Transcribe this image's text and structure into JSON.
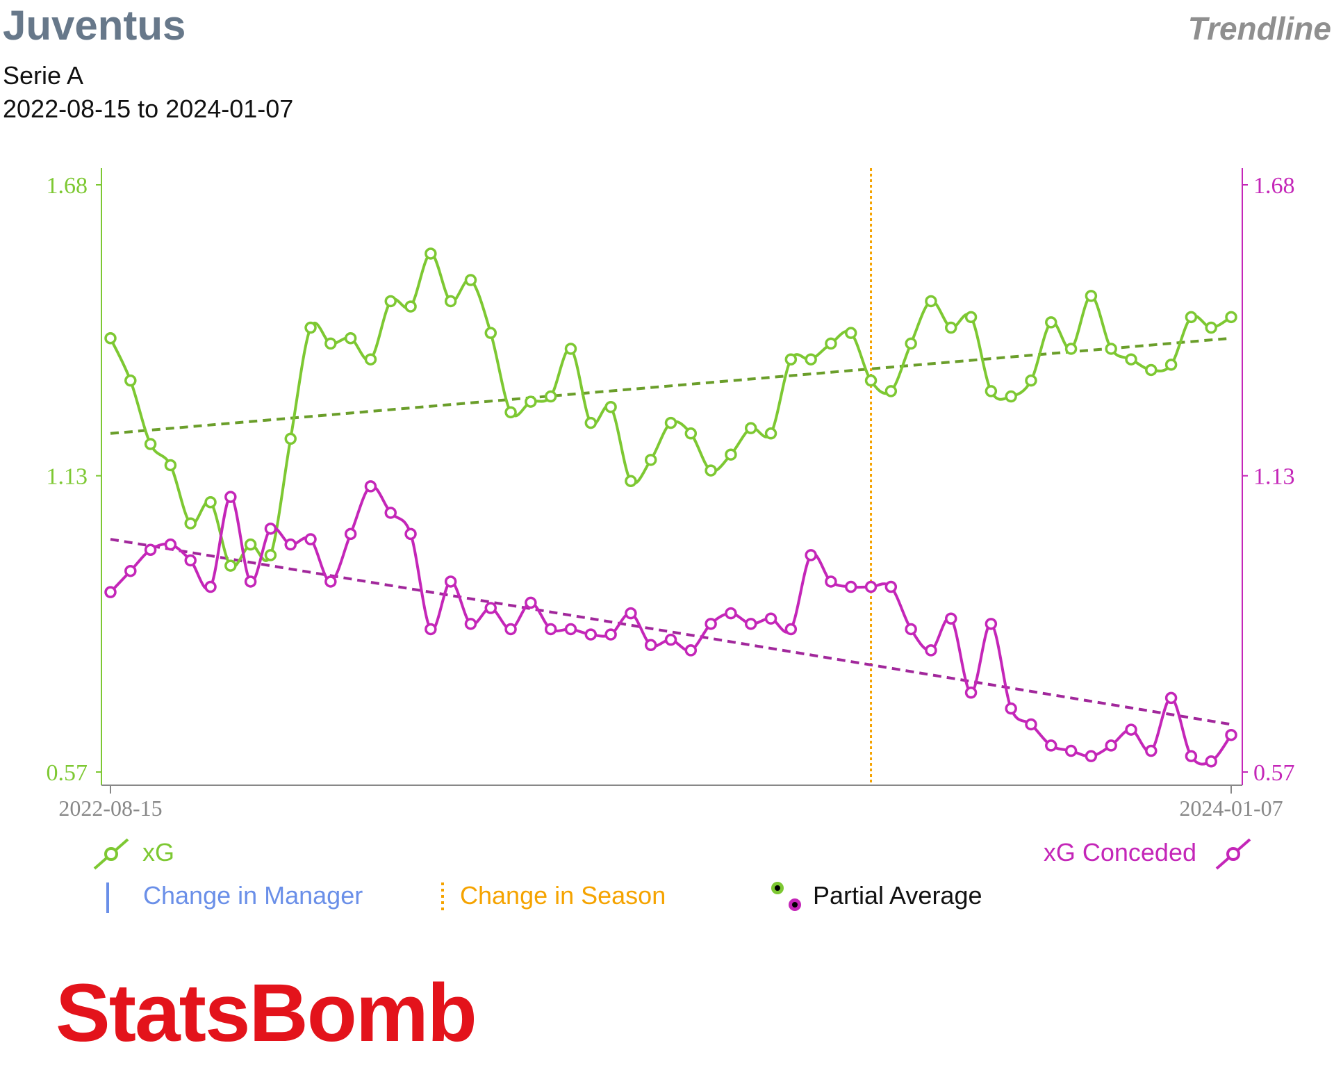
{
  "header": {
    "title": "Juventus",
    "view": "Trendline",
    "competition": "Serie A",
    "date_range": "2022-08-15 to 2024-01-07"
  },
  "colors": {
    "xg": "#7dc832",
    "xg_conceded": "#c426b8",
    "xg_trend": "#6a9e2a",
    "xg_conceded_trend": "#a1279b",
    "season_change": "#f5a300",
    "manager_change": "#6a8fe8",
    "axis": "#888888",
    "logo": "#e3131b"
  },
  "chart_data": {
    "type": "line",
    "x_start_label": "2022-08-15",
    "x_end_label": "2024-01-07",
    "ylim": [
      0.57,
      1.68
    ],
    "left_ticks": [
      "1.68",
      "1.13",
      "0.57"
    ],
    "right_ticks": [
      "1.68",
      "1.13",
      "0.57"
    ],
    "season_change_index": 38,
    "series": [
      {
        "name": "xG",
        "axis": "left",
        "values": [
          1.39,
          1.31,
          1.19,
          1.15,
          1.04,
          1.08,
          0.96,
          1.0,
          0.98,
          1.2,
          1.41,
          1.38,
          1.39,
          1.35,
          1.46,
          1.45,
          1.55,
          1.46,
          1.5,
          1.4,
          1.25,
          1.27,
          1.28,
          1.37,
          1.23,
          1.26,
          1.12,
          1.16,
          1.23,
          1.21,
          1.14,
          1.17,
          1.22,
          1.21,
          1.35,
          1.35,
          1.38,
          1.4,
          1.31,
          1.29,
          1.38,
          1.46,
          1.41,
          1.43,
          1.29,
          1.28,
          1.31,
          1.42,
          1.37,
          1.47,
          1.37,
          1.35,
          1.33,
          1.34,
          1.43,
          1.41,
          1.43
        ],
        "trend": [
          1.21,
          1.39
        ]
      },
      {
        "name": "xG Conceded",
        "axis": "right",
        "values": [
          0.91,
          0.95,
          0.99,
          1.0,
          0.97,
          0.92,
          1.09,
          0.93,
          1.03,
          1.0,
          1.01,
          0.93,
          1.02,
          1.11,
          1.06,
          1.02,
          0.84,
          0.93,
          0.85,
          0.88,
          0.84,
          0.89,
          0.84,
          0.84,
          0.83,
          0.83,
          0.87,
          0.81,
          0.82,
          0.8,
          0.85,
          0.87,
          0.85,
          0.86,
          0.84,
          0.98,
          0.93,
          0.92,
          0.92,
          0.92,
          0.84,
          0.8,
          0.86,
          0.72,
          0.85,
          0.69,
          0.66,
          0.62,
          0.61,
          0.6,
          0.62,
          0.65,
          0.61,
          0.71,
          0.6,
          0.59,
          0.64
        ],
        "trend": [
          1.01,
          0.66
        ]
      }
    ]
  },
  "legend": {
    "xg": "xG",
    "xg_conceded": "xG Conceded",
    "manager_change": "Change in Manager",
    "season_change": "Change in Season",
    "partial_average": "Partial Average"
  },
  "logo": {
    "text": "StatsBomb"
  }
}
